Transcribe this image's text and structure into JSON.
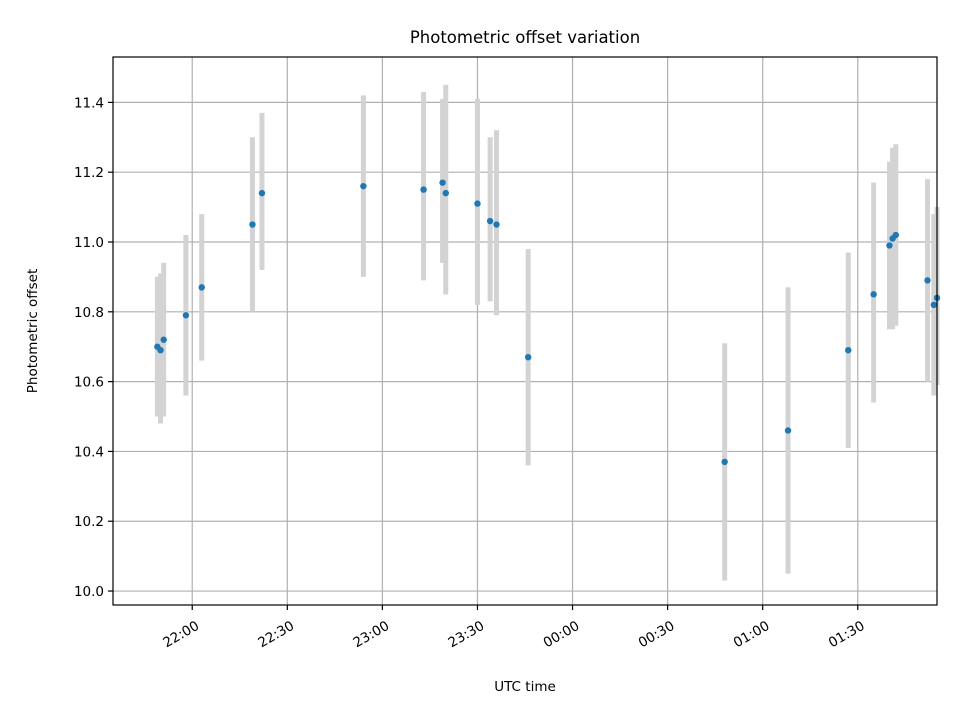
{
  "chart_data": {
    "type": "scatter",
    "title": "Photometric offset variation",
    "xlabel": "UTC time",
    "ylabel": "Photometric offset",
    "x_axis_type": "time",
    "xlim": [
      "21:35",
      "01:55"
    ],
    "ylim": [
      9.96,
      11.53
    ],
    "x_ticks": [
      "22:00",
      "22:30",
      "23:00",
      "23:30",
      "00:00",
      "00:30",
      "01:00",
      "01:30"
    ],
    "y_ticks": [
      "10.0",
      "10.2",
      "10.4",
      "10.6",
      "10.8",
      "11.0",
      "11.2",
      "11.4"
    ],
    "grid": true,
    "colors": {
      "point": "#1f77b4",
      "errorbar": "#d3d3d3"
    },
    "points": [
      {
        "x": "21:49",
        "y": 10.7,
        "err_low": 10.5,
        "err_high": 10.9
      },
      {
        "x": "21:50",
        "y": 10.69,
        "err_low": 10.48,
        "err_high": 10.91
      },
      {
        "x": "21:51",
        "y": 10.72,
        "err_low": 10.5,
        "err_high": 10.94
      },
      {
        "x": "21:58",
        "y": 10.79,
        "err_low": 10.56,
        "err_high": 11.02
      },
      {
        "x": "22:03",
        "y": 10.87,
        "err_low": 10.66,
        "err_high": 11.08
      },
      {
        "x": "22:19",
        "y": 11.05,
        "err_low": 10.8,
        "err_high": 11.3
      },
      {
        "x": "22:22",
        "y": 11.14,
        "err_low": 10.92,
        "err_high": 11.37
      },
      {
        "x": "22:54",
        "y": 11.16,
        "err_low": 10.9,
        "err_high": 11.42
      },
      {
        "x": "23:13",
        "y": 11.15,
        "err_low": 10.89,
        "err_high": 11.43
      },
      {
        "x": "23:19",
        "y": 11.17,
        "err_low": 10.94,
        "err_high": 11.41
      },
      {
        "x": "23:20",
        "y": 11.14,
        "err_low": 10.85,
        "err_high": 11.45
      },
      {
        "x": "23:30",
        "y": 11.11,
        "err_low": 10.82,
        "err_high": 11.41
      },
      {
        "x": "23:34",
        "y": 11.06,
        "err_low": 10.83,
        "err_high": 11.3
      },
      {
        "x": "23:36",
        "y": 11.05,
        "err_low": 10.79,
        "err_high": 11.32
      },
      {
        "x": "23:46",
        "y": 10.67,
        "err_low": 10.36,
        "err_high": 10.98
      },
      {
        "x": "00:48",
        "y": 10.37,
        "err_low": 10.03,
        "err_high": 10.71
      },
      {
        "x": "01:08",
        "y": 10.46,
        "err_low": 10.05,
        "err_high": 10.87
      },
      {
        "x": "01:27",
        "y": 10.69,
        "err_low": 10.41,
        "err_high": 10.97
      },
      {
        "x": "01:35",
        "y": 10.85,
        "err_low": 10.54,
        "err_high": 11.17
      },
      {
        "x": "01:40",
        "y": 10.99,
        "err_low": 10.75,
        "err_high": 11.23
      },
      {
        "x": "01:41",
        "y": 11.01,
        "err_low": 10.75,
        "err_high": 11.27
      },
      {
        "x": "01:42",
        "y": 11.02,
        "err_low": 10.76,
        "err_high": 11.28
      },
      {
        "x": "01:52",
        "y": 10.89,
        "err_low": 10.6,
        "err_high": 11.18
      },
      {
        "x": "01:54",
        "y": 10.82,
        "err_low": 10.56,
        "err_high": 11.08
      },
      {
        "x": "01:55",
        "y": 10.84,
        "err_low": 10.59,
        "err_high": 11.1
      }
    ]
  }
}
